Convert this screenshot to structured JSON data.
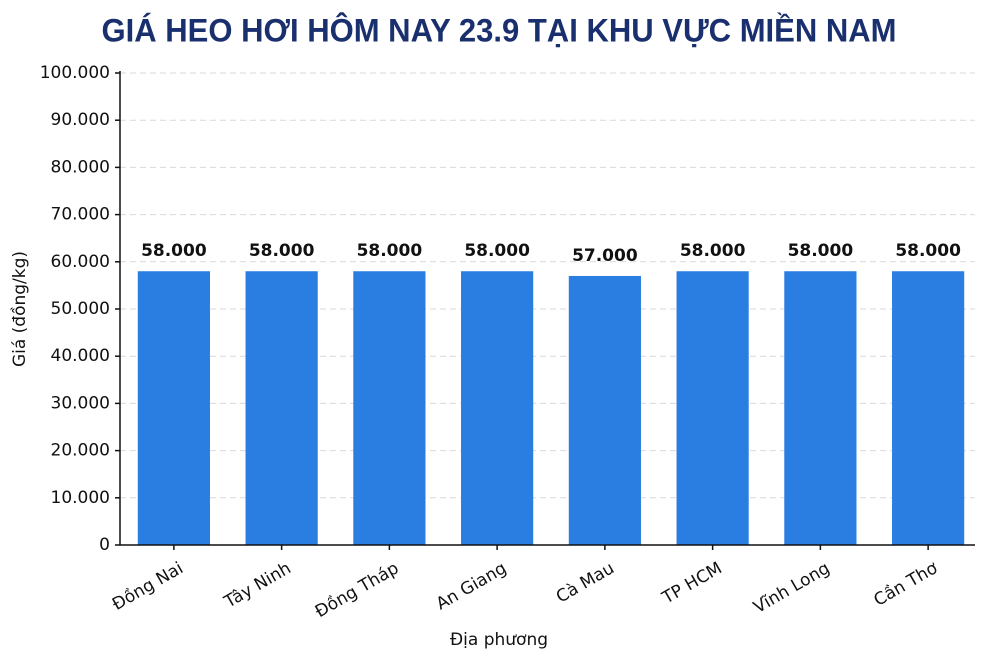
{
  "chart_data": {
    "type": "bar",
    "title": "GIÁ HEO HƠI HÔM NAY 23.9 TẠI KHU VỰC MIỀN NAM",
    "x_label": "Địa phương",
    "y_label": "Giá (đồng/kg)",
    "categories": [
      "Đồng Nai",
      "Tây Ninh",
      "Đồng Tháp",
      "An Giang",
      "Cà Mau",
      "TP HCM",
      "Vĩnh Long",
      "Cần Thơ"
    ],
    "values": [
      58000,
      58000,
      58000,
      58000,
      57000,
      58000,
      58000,
      58000
    ],
    "value_labels": [
      "58.000",
      "58.000",
      "58.000",
      "58.000",
      "57.000",
      "58.000",
      "58.000",
      "58.000"
    ],
    "color": "#2a7de1",
    "ylim": [
      0,
      100000
    ],
    "yticks": [
      0,
      {
        "value": 10000,
        "label": "10.000"
      },
      {
        "value": 20000,
        "label": "20.000"
      },
      {
        "value": 30000,
        "label": "30.000"
      },
      {
        "value": 40000,
        "label": "40.000"
      },
      {
        "value": 50000,
        "label": "50.000"
      },
      {
        "value": 60000,
        "label": "60.000"
      },
      {
        "value": 70000,
        "label": "70.000"
      },
      {
        "value": 80000,
        "label": "80.000"
      },
      {
        "value": 90000,
        "label": "90.000"
      },
      {
        "value": 100000,
        "label": "100.000"
      }
    ],
    "grid": true
  }
}
